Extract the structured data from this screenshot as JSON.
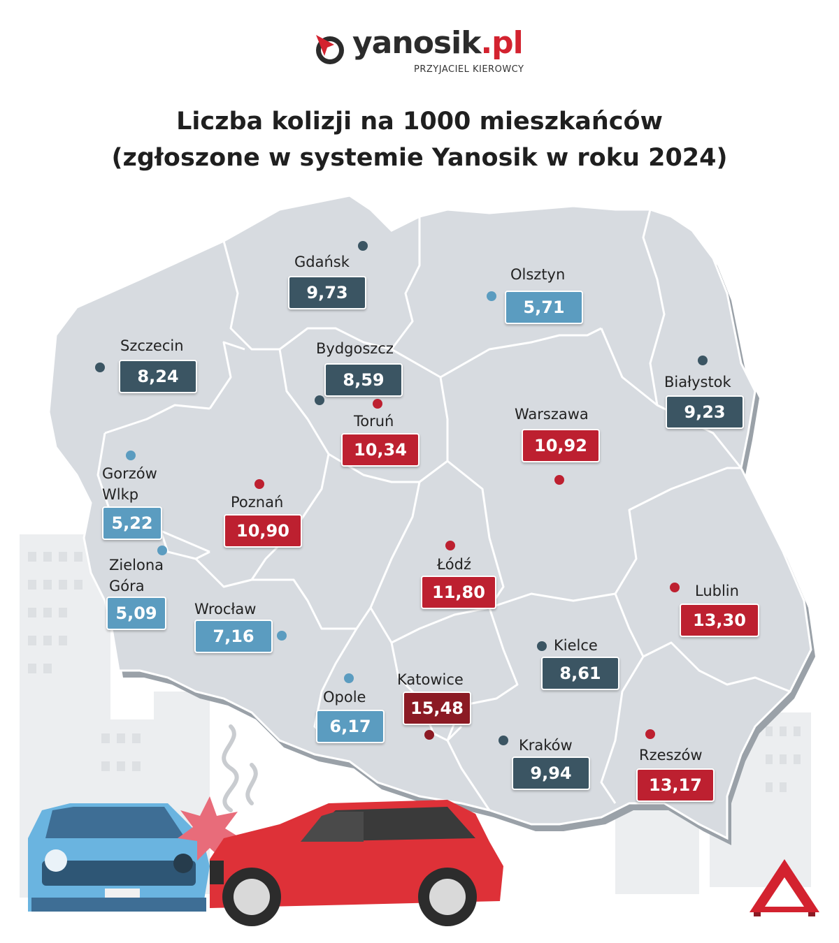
{
  "brand": {
    "name_main": "yanosik",
    "name_suffix": ".pl",
    "tagline": "PRZYJACIEL KIEROWCY"
  },
  "title": {
    "line1": "Liczba kolizji na 1000 mieszkańców",
    "line2": "(zgłoszone w systemie Yanosik w roku 2024)"
  },
  "colors": {
    "low": "#5b9cc0",
    "medium": "#3b5563",
    "high": "#bd2030",
    "highest": "#8b1a24",
    "map": "#d7dbe0"
  },
  "cities": {
    "gdansk": {
      "name": "Gdańsk",
      "value": "9,73",
      "level": "dark"
    },
    "olsztyn": {
      "name": "Olsztyn",
      "value": "5,71",
      "level": "blue"
    },
    "szczecin": {
      "name": "Szczecin",
      "value": "8,24",
      "level": "dark"
    },
    "bydgoszcz": {
      "name": "Bydgoszcz",
      "value": "8,59",
      "level": "dark"
    },
    "bialystok": {
      "name": "Białystok",
      "value": "9,23",
      "level": "dark"
    },
    "torun": {
      "name": "Toruń",
      "value": "10,34",
      "level": "red"
    },
    "warszawa": {
      "name": "Warszawa",
      "value": "10,92",
      "level": "red"
    },
    "gorzow": {
      "name_line1": "Gorzów",
      "name_line2": "Wlkp",
      "value": "5,22",
      "level": "blue"
    },
    "poznan": {
      "name": "Poznań",
      "value": "10,90",
      "level": "red"
    },
    "zielona": {
      "name_line1": "Zielona",
      "name_line2": "Góra",
      "value": "5,09",
      "level": "blue"
    },
    "lodz": {
      "name": "Łódź",
      "value": "11,80",
      "level": "red"
    },
    "lublin": {
      "name": "Lublin",
      "value": "13,30",
      "level": "red"
    },
    "wroclaw": {
      "name": "Wrocław",
      "value": "7,16",
      "level": "blue"
    },
    "kielce": {
      "name": "Kielce",
      "value": "8,61",
      "level": "dark"
    },
    "katowice": {
      "name": "Katowice",
      "value": "15,48",
      "level": "crim"
    },
    "opole": {
      "name": "Opole",
      "value": "6,17",
      "level": "blue"
    },
    "krakow": {
      "name": "Kraków",
      "value": "9,94",
      "level": "dark"
    },
    "rzeszow": {
      "name": "Rzeszów",
      "value": "13,17",
      "level": "red"
    }
  }
}
